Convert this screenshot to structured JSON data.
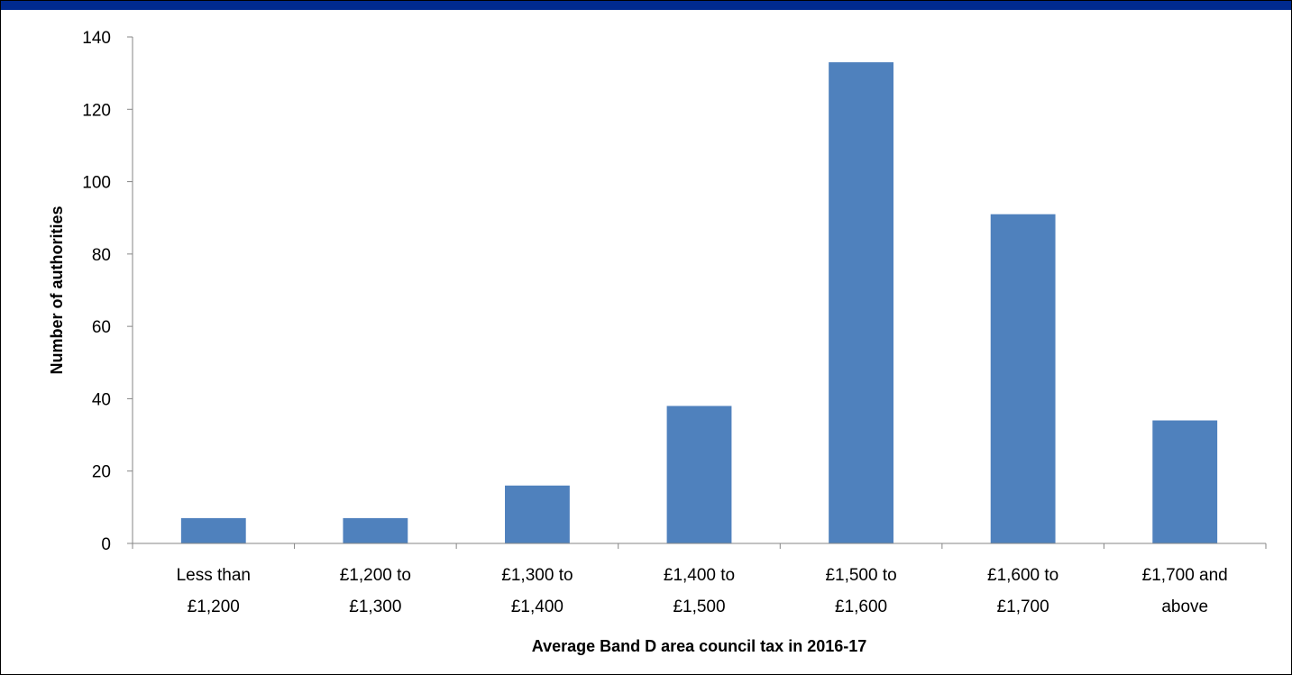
{
  "page": {
    "title": "",
    "title_bar_color": "#002a8f"
  },
  "chart_data": {
    "type": "bar",
    "title": "",
    "xlabel": "Average Band D area council tax in 2016-17",
    "ylabel": "Number of authorities",
    "categories": [
      [
        "Less than",
        "£1,200"
      ],
      [
        "£1,200 to",
        "£1,300"
      ],
      [
        "£1,300 to",
        "£1,400"
      ],
      [
        "£1,400 to",
        "£1,500"
      ],
      [
        "£1,500 to",
        "£1,600"
      ],
      [
        "£1,600 to",
        "£1,700"
      ],
      [
        "£1,700 and",
        "above"
      ]
    ],
    "values": [
      7,
      7,
      16,
      38,
      133,
      91,
      34
    ],
    "ylim": [
      0,
      140
    ],
    "yticks": [
      0,
      20,
      40,
      60,
      80,
      100,
      120,
      140
    ],
    "bar_color": "#4f81bd",
    "grid": false,
    "legend": "none"
  }
}
